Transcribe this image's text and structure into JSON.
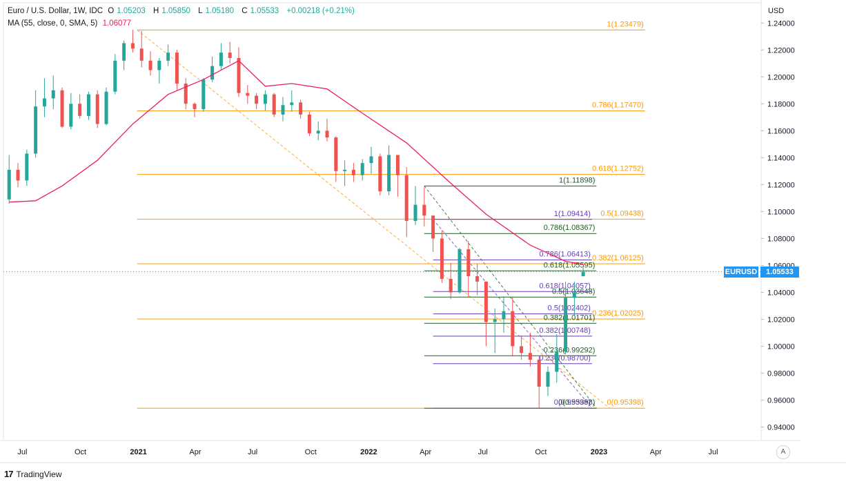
{
  "header": {
    "title": "Euro / U.S. Dollar, 1W, IDC",
    "open_label": "O",
    "open": "1.05203",
    "high_label": "H",
    "high": "1.05850",
    "low_label": "L",
    "low": "1.05180",
    "close_label": "C",
    "close": "1.05533",
    "change": "+0.00218 (+0.21%)",
    "ma_label": "MA (55, close, 0, SMA, 5)",
    "ma_value": "1.06077"
  },
  "axis": {
    "currency": "USD",
    "auto_label": "A",
    "symbol_tag": "EURUSD",
    "last_price": "1.05533"
  },
  "brand": {
    "logo": "17",
    "name": "TradingView"
  },
  "colors": {
    "up": "#26a69a",
    "down": "#ef5350",
    "ma": "#e91e63",
    "fib_orange": "#ff9800",
    "fib_green": "#1b5e20",
    "fib_purple": "#673ab7",
    "last_price": "#2196f3"
  },
  "chart_data": {
    "type": "candlestick",
    "symbol": "EURUSD",
    "timeframe": "1W",
    "ylim": [
      0.93,
      1.255
    ],
    "y_ticks": [
      "0.94000",
      "0.96000",
      "0.98000",
      "1.00000",
      "1.02000",
      "1.04000",
      "1.06000",
      "1.08000",
      "1.10000",
      "1.12000",
      "1.14000",
      "1.16000",
      "1.18000",
      "1.20000",
      "1.22000",
      "1.24000"
    ],
    "y_tick_values": [
      0.94,
      0.96,
      0.98,
      1.0,
      1.02,
      1.04,
      1.06,
      1.08,
      1.1,
      1.12,
      1.14,
      1.16,
      1.18,
      1.2,
      1.22,
      1.24
    ],
    "x_ticks": [
      {
        "label": "Jul",
        "date": "2020-07-01"
      },
      {
        "label": "Oct",
        "date": "2020-10-01"
      },
      {
        "label": "2021",
        "date": "2021-01-01"
      },
      {
        "label": "Apr",
        "date": "2021-04-01"
      },
      {
        "label": "Jul",
        "date": "2021-07-01"
      },
      {
        "label": "Oct",
        "date": "2021-10-01"
      },
      {
        "label": "2022",
        "date": "2022-01-01"
      },
      {
        "label": "Apr",
        "date": "2022-04-01"
      },
      {
        "label": "Jul",
        "date": "2022-07-01"
      },
      {
        "label": "Oct",
        "date": "2022-10-01"
      },
      {
        "label": "2023",
        "date": "2023-01-01"
      },
      {
        "label": "Apr",
        "date": "2023-04-01"
      },
      {
        "label": "Jul",
        "date": "2023-07-01"
      }
    ],
    "bold_x_ticks": [
      "2021",
      "2022",
      "2023"
    ],
    "fib_levels": [
      {
        "set": "orange",
        "label": "1(1.23479)",
        "price": 1.23479,
        "start": "2020-12-30",
        "end": "2023-03-15"
      },
      {
        "set": "orange",
        "label": "0.786(1.17470)",
        "price": 1.1747,
        "start": "2020-12-30",
        "end": "2023-03-15"
      },
      {
        "set": "orange",
        "label": "0.618(1.12752)",
        "price": 1.12752,
        "start": "2020-12-30",
        "end": "2023-03-15"
      },
      {
        "set": "orange",
        "label": "0.5(1.09438)",
        "price": 1.09438,
        "start": "2020-12-30",
        "end": "2023-03-15"
      },
      {
        "set": "orange",
        "label": "0.382(1.06125)",
        "price": 1.06125,
        "start": "2020-12-30",
        "end": "2023-03-15"
      },
      {
        "set": "orange",
        "label": "0.236(1.02025)",
        "price": 1.02025,
        "start": "2020-12-30",
        "end": "2023-03-15"
      },
      {
        "set": "orange",
        "label": "0(0.95398)",
        "price": 0.95398,
        "start": "2020-12-30",
        "end": "2023-03-15"
      },
      {
        "set": "green",
        "label": "1(1.11898)",
        "price": 1.11898,
        "start": "2022-03-30",
        "end": "2022-12-28"
      },
      {
        "set": "green",
        "label": "0.786(1.08367)",
        "price": 1.08367,
        "start": "2022-03-30",
        "end": "2022-12-28"
      },
      {
        "set": "green",
        "label": "0.618(1.05595)",
        "price": 1.05595,
        "start": "2022-03-30",
        "end": "2022-12-28"
      },
      {
        "set": "green",
        "label": "0.5(1.03648)",
        "price": 1.03648,
        "start": "2022-03-30",
        "end": "2022-12-28"
      },
      {
        "set": "green",
        "label": "0.382(1.01701)",
        "price": 1.01701,
        "start": "2022-03-30",
        "end": "2022-12-28"
      },
      {
        "set": "green",
        "label": "0.236(0.99292)",
        "price": 0.99292,
        "start": "2022-03-30",
        "end": "2022-12-28"
      },
      {
        "set": "green",
        "label": "0(0.95398)",
        "price": 0.95398,
        "start": "2022-03-30",
        "end": "2022-12-28"
      },
      {
        "set": "purple",
        "label": "1(1.09414)",
        "price": 1.09414,
        "start": "2022-04-13",
        "end": "2022-12-21"
      },
      {
        "set": "purple",
        "label": "0.786(1.06413)",
        "price": 1.06413,
        "start": "2022-04-13",
        "end": "2022-12-21"
      },
      {
        "set": "purple",
        "label": "0.618(1.04057)",
        "price": 1.04057,
        "start": "2022-04-13",
        "end": "2022-12-21"
      },
      {
        "set": "purple",
        "label": "0.5(1.02402)",
        "price": 1.02402,
        "start": "2022-04-13",
        "end": "2022-12-21"
      },
      {
        "set": "purple",
        "label": "0.382(1.00748)",
        "price": 1.00748,
        "start": "2022-04-13",
        "end": "2022-12-21"
      },
      {
        "set": "purple",
        "label": "0.236(0.98700)",
        "price": 0.987,
        "start": "2022-04-13",
        "end": "2022-12-21"
      },
      {
        "set": "purple",
        "label": "0(0.95398)",
        "price": 0.95398,
        "start": "2022-04-13",
        "end": "2022-12-21"
      }
    ],
    "trend_lines": [
      {
        "set": "orange",
        "from": {
          "date": "2020-12-30",
          "price": 1.23479
        },
        "to": {
          "date": "2023-01-18",
          "price": 0.95398
        }
      },
      {
        "set": "green",
        "from": {
          "date": "2022-03-30",
          "price": 1.11898
        },
        "to": {
          "date": "2022-12-28",
          "price": 0.95398
        }
      },
      {
        "set": "purple",
        "from": {
          "date": "2022-04-13",
          "price": 1.09414
        },
        "to": {
          "date": "2022-12-21",
          "price": 0.95398
        }
      }
    ],
    "candles": [
      [
        "2020-06-10",
        1.109,
        1.142,
        1.106,
        1.131
      ],
      [
        "2020-06-24",
        1.131,
        1.136,
        1.118,
        1.123
      ],
      [
        "2020-07-08",
        1.123,
        1.146,
        1.119,
        1.143
      ],
      [
        "2020-07-22",
        1.143,
        1.19,
        1.14,
        1.178
      ],
      [
        "2020-08-05",
        1.178,
        1.199,
        1.17,
        1.184
      ],
      [
        "2020-08-19",
        1.184,
        1.201,
        1.176,
        1.19
      ],
      [
        "2020-09-02",
        1.19,
        1.192,
        1.162,
        1.163
      ],
      [
        "2020-09-16",
        1.163,
        1.188,
        1.161,
        1.18
      ],
      [
        "2020-09-30",
        1.18,
        1.187,
        1.169,
        1.171
      ],
      [
        "2020-10-14",
        1.171,
        1.189,
        1.168,
        1.187
      ],
      [
        "2020-10-28",
        1.187,
        1.19,
        1.162,
        1.165
      ],
      [
        "2020-11-11",
        1.165,
        1.192,
        1.164,
        1.189
      ],
      [
        "2020-11-25",
        1.189,
        1.217,
        1.187,
        1.212
      ],
      [
        "2020-12-09",
        1.212,
        1.227,
        1.205,
        1.225
      ],
      [
        "2020-12-23",
        1.225,
        1.235,
        1.218,
        1.221
      ],
      [
        "2021-01-06",
        1.221,
        1.234,
        1.207,
        1.212
      ],
      [
        "2021-01-20",
        1.212,
        1.219,
        1.201,
        1.205
      ],
      [
        "2021-02-03",
        1.205,
        1.214,
        1.195,
        1.212
      ],
      [
        "2021-02-17",
        1.212,
        1.224,
        1.208,
        1.218
      ],
      [
        "2021-03-03",
        1.218,
        1.22,
        1.19,
        1.195
      ],
      [
        "2021-03-17",
        1.195,
        1.199,
        1.176,
        1.18
      ],
      [
        "2021-03-31",
        1.18,
        1.181,
        1.17,
        1.176
      ],
      [
        "2021-04-14",
        1.176,
        1.199,
        1.174,
        1.198
      ],
      [
        "2021-04-28",
        1.198,
        1.215,
        1.196,
        1.208
      ],
      [
        "2021-05-12",
        1.208,
        1.225,
        1.205,
        1.218
      ],
      [
        "2021-05-26",
        1.218,
        1.226,
        1.21,
        1.214
      ],
      [
        "2021-06-09",
        1.214,
        1.222,
        1.185,
        1.188
      ],
      [
        "2021-06-23",
        1.188,
        1.194,
        1.18,
        1.186
      ],
      [
        "2021-07-07",
        1.186,
        1.188,
        1.176,
        1.18
      ],
      [
        "2021-07-21",
        1.18,
        1.19,
        1.175,
        1.187
      ],
      [
        "2021-08-04",
        1.187,
        1.188,
        1.17,
        1.172
      ],
      [
        "2021-08-18",
        1.172,
        1.185,
        1.167,
        1.179
      ],
      [
        "2021-09-01",
        1.179,
        1.19,
        1.174,
        1.181
      ],
      [
        "2021-09-15",
        1.181,
        1.183,
        1.169,
        1.172
      ],
      [
        "2021-09-29",
        1.172,
        1.174,
        1.156,
        1.158
      ],
      [
        "2021-10-13",
        1.158,
        1.167,
        1.153,
        1.16
      ],
      [
        "2021-10-27",
        1.16,
        1.169,
        1.152,
        1.155
      ],
      [
        "2021-11-10",
        1.155,
        1.156,
        1.122,
        1.13
      ],
      [
        "2021-11-24",
        1.13,
        1.138,
        1.119,
        1.131
      ],
      [
        "2021-12-08",
        1.131,
        1.136,
        1.122,
        1.127
      ],
      [
        "2021-12-22",
        1.127,
        1.139,
        1.123,
        1.136
      ],
      [
        "2022-01-05",
        1.136,
        1.148,
        1.128,
        1.141
      ],
      [
        "2022-01-19",
        1.141,
        1.143,
        1.112,
        1.115
      ],
      [
        "2022-02-02",
        1.115,
        1.149,
        1.112,
        1.142
      ],
      [
        "2022-02-16",
        1.142,
        1.14,
        1.111,
        1.127
      ],
      [
        "2022-03-02",
        1.127,
        1.133,
        1.081,
        1.093
      ],
      [
        "2022-03-16",
        1.093,
        1.119,
        1.09,
        1.105
      ],
      [
        "2022-03-30",
        1.105,
        1.118,
        1.089,
        1.097
      ],
      [
        "2022-04-13",
        1.097,
        1.096,
        1.07,
        1.08
      ],
      [
        "2022-04-27",
        1.08,
        1.086,
        1.047,
        1.05
      ],
      [
        "2022-05-11",
        1.05,
        1.062,
        1.035,
        1.04
      ],
      [
        "2022-05-25",
        1.04,
        1.073,
        1.039,
        1.072
      ],
      [
        "2022-06-08",
        1.072,
        1.078,
        1.036,
        1.052
      ],
      [
        "2022-06-22",
        1.052,
        1.061,
        1.038,
        1.048
      ],
      [
        "2022-07-06",
        1.048,
        1.048,
        1.0,
        1.018
      ],
      [
        "2022-07-20",
        1.018,
        1.028,
        0.995,
        1.02
      ],
      [
        "2022-08-03",
        1.02,
        1.037,
        1.01,
        1.026
      ],
      [
        "2022-08-17",
        1.026,
        1.036,
        0.993,
        1.0
      ],
      [
        "2022-08-31",
        1.0,
        1.008,
        0.99,
        0.995
      ],
      [
        "2022-09-14",
        0.995,
        1.01,
        0.985,
        0.99
      ],
      [
        "2022-09-28",
        0.99,
        0.993,
        0.954,
        0.97
      ],
      [
        "2022-10-12",
        0.97,
        0.985,
        0.963,
        0.981
      ],
      [
        "2022-10-26",
        0.981,
        1.009,
        0.973,
        0.996
      ],
      [
        "2022-11-09",
        0.996,
        1.048,
        0.994,
        1.036
      ],
      [
        "2022-11-23",
        1.036,
        1.048,
        1.023,
        1.04
      ],
      [
        "2022-12-07",
        1.052,
        1.0585,
        1.0518,
        1.0553
      ]
    ],
    "ma": {
      "label": "MA (55, close, 0, SMA, 5)",
      "points": [
        [
          "2020-06-10",
          1.107
        ],
        [
          "2020-07-22",
          1.108
        ],
        [
          "2020-09-02",
          1.119
        ],
        [
          "2020-10-28",
          1.138
        ],
        [
          "2020-12-23",
          1.165
        ],
        [
          "2021-02-17",
          1.187
        ],
        [
          "2021-04-14",
          1.198
        ],
        [
          "2021-06-09",
          1.212
        ],
        [
          "2021-07-21",
          1.193
        ],
        [
          "2021-09-01",
          1.195
        ],
        [
          "2021-10-27",
          1.191
        ],
        [
          "2021-12-22",
          1.173
        ],
        [
          "2022-03-02",
          1.151
        ],
        [
          "2022-05-11",
          1.121
        ],
        [
          "2022-07-06",
          1.098
        ],
        [
          "2022-09-14",
          1.075
        ],
        [
          "2022-11-09",
          1.063
        ],
        [
          "2022-12-07",
          1.0608
        ]
      ]
    }
  }
}
